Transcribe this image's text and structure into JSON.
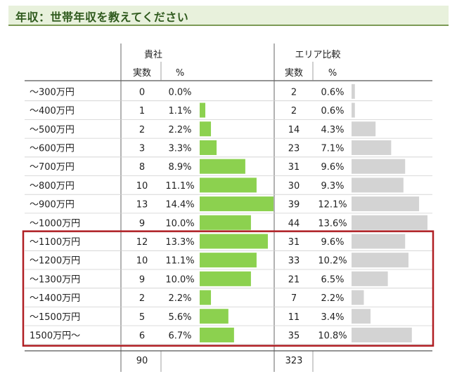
{
  "page": {
    "title": "年収：世帯年収を教えてください"
  },
  "table": {
    "group_company": "貴社",
    "group_area": "エリア比較",
    "col_count": "実数",
    "col_pct": "%"
  },
  "chart_data": {
    "type": "bar",
    "orientation": "horizontal",
    "categories": [
      "～300万円",
      "～400万円",
      "～500万円",
      "～600万円",
      "～700万円",
      "～800万円",
      "～900万円",
      "～1000万円",
      "～1100万円",
      "～1200万円",
      "～1300万円",
      "～1400万円",
      "～1500万円",
      "1500万円～"
    ],
    "series": [
      {
        "name": "貴社",
        "counts": [
          0,
          1,
          2,
          3,
          8,
          10,
          13,
          9,
          12,
          10,
          9,
          2,
          5,
          6
        ],
        "percent_labels": [
          "0.0%",
          "1.1%",
          "2.2%",
          "3.3%",
          "8.9%",
          "11.1%",
          "14.4%",
          "10.0%",
          "13.3%",
          "11.1%",
          "10.0%",
          "2.2%",
          "5.6%",
          "6.7%"
        ],
        "values": [
          0.0,
          1.1,
          2.2,
          3.3,
          8.9,
          11.1,
          14.4,
          10.0,
          13.3,
          11.1,
          10.0,
          2.2,
          5.6,
          6.7
        ],
        "total": "90",
        "color": "#8cd14f"
      },
      {
        "name": "エリア比較",
        "counts": [
          2,
          2,
          14,
          23,
          31,
          30,
          39,
          44,
          31,
          33,
          21,
          7,
          11,
          35
        ],
        "percent_labels": [
          "0.6%",
          "0.6%",
          "4.3%",
          "7.1%",
          "9.6%",
          "9.3%",
          "12.1%",
          "13.6%",
          "9.6%",
          "10.2%",
          "6.5%",
          "2.2%",
          "3.4%",
          "10.8%"
        ],
        "values": [
          0.6,
          0.6,
          4.3,
          7.1,
          9.6,
          9.3,
          12.1,
          13.6,
          9.6,
          10.2,
          6.5,
          2.2,
          3.4,
          10.8
        ],
        "total": "323",
        "color": "#d3d3d3"
      }
    ],
    "highlight": {
      "from_category": "～1100万円",
      "to_category": "1500万円～",
      "color": "#b01e23"
    }
  }
}
